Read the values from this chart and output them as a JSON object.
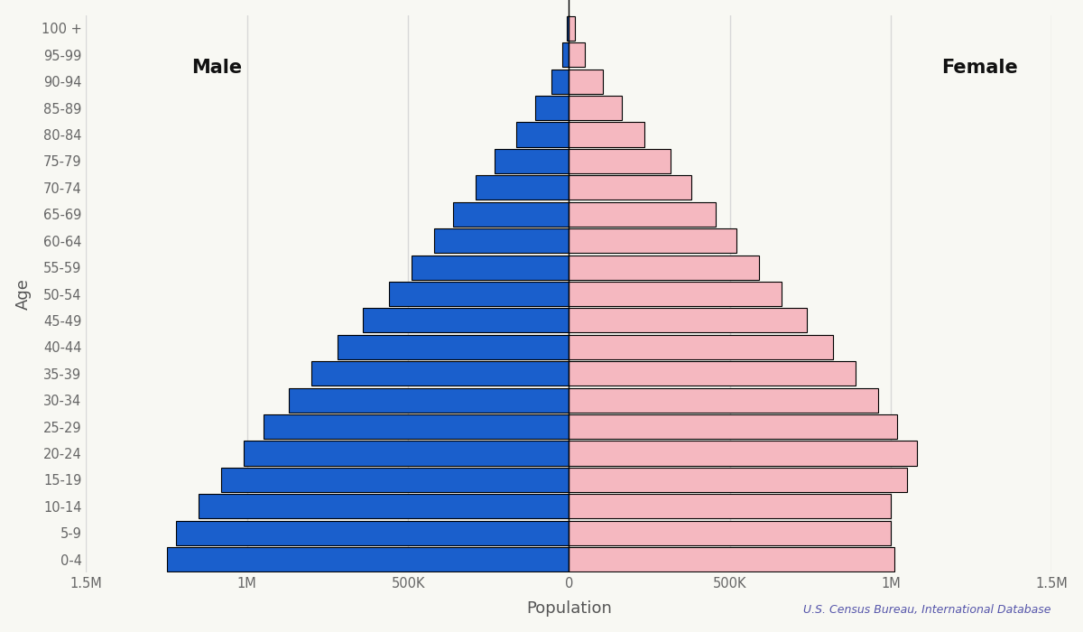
{
  "age_groups": [
    "0-4",
    "5-9",
    "10-14",
    "15-19",
    "20-24",
    "25-29",
    "30-34",
    "35-39",
    "40-44",
    "45-49",
    "50-54",
    "55-59",
    "60-64",
    "65-69",
    "70-74",
    "75-79",
    "80-84",
    "85-89",
    "90-94",
    "95-99",
    "100 +"
  ],
  "male": [
    1250000,
    1220000,
    1150000,
    1080000,
    1010000,
    950000,
    870000,
    800000,
    720000,
    640000,
    560000,
    490000,
    420000,
    360000,
    290000,
    230000,
    165000,
    105000,
    55000,
    22000,
    7000
  ],
  "female": [
    1010000,
    1000000,
    1000000,
    1050000,
    1080000,
    1020000,
    960000,
    890000,
    820000,
    740000,
    660000,
    590000,
    520000,
    455000,
    380000,
    315000,
    235000,
    165000,
    105000,
    48000,
    18000
  ],
  "male_color": "#1a5fcc",
  "female_color": "#f5b8c0",
  "male_edge": "#000000",
  "female_edge": "#000000",
  "xlabel": "Population",
  "ylabel": "Age",
  "xlim": 1500000,
  "background_color": "#f8f8f3",
  "grid_color": "#d8d8d8",
  "label_male": "Male",
  "label_female": "Female",
  "source_text": "U.S. Census Bureau, International Database",
  "tick_vals": [
    -1500000,
    -1000000,
    -500000,
    0,
    500000,
    1000000,
    1500000
  ],
  "tick_labels": [
    "1.5M",
    "1M",
    "500K",
    "0",
    "500K",
    "1M",
    "1.5M"
  ]
}
